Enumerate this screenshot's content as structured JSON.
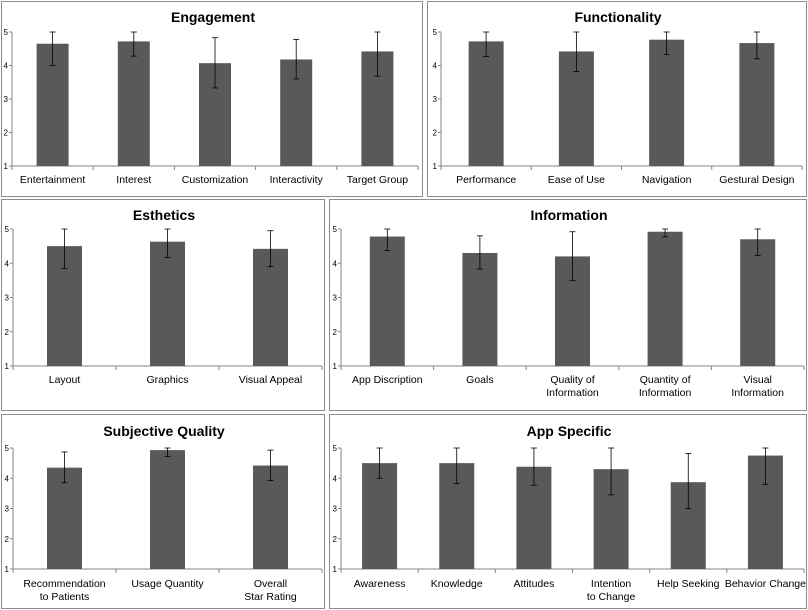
{
  "chart_data": [
    {
      "type": "bar",
      "title": "Engagement",
      "categories": [
        "Entertainment",
        "Interest",
        "Customization",
        "Interactivity",
        "Target Group"
      ],
      "values": [
        4.65,
        4.72,
        4.07,
        4.18,
        4.42
      ],
      "error_low": [
        4.0,
        4.28,
        3.33,
        3.6,
        3.68
      ],
      "error_high": [
        5.0,
        5.0,
        4.83,
        4.78,
        5.0
      ],
      "ylim": [
        1,
        5
      ],
      "yticks": [
        "1",
        "2",
        "3",
        "4",
        "5"
      ],
      "xlabel": "",
      "ylabel": "",
      "color": "#595959"
    },
    {
      "type": "bar",
      "title": "Functionality",
      "categories": [
        "Performance",
        "Ease of Use",
        "Navigation",
        "Gestural Design"
      ],
      "values": [
        4.72,
        4.42,
        4.77,
        4.67
      ],
      "error_low": [
        4.27,
        3.82,
        4.33,
        4.2
      ],
      "error_high": [
        5.0,
        5.0,
        5.0,
        5.0
      ],
      "ylim": [
        1,
        5
      ],
      "yticks": [
        "1",
        "2",
        "3",
        "4",
        "5"
      ],
      "xlabel": "",
      "ylabel": "",
      "color": "#595959"
    },
    {
      "type": "bar",
      "title": "Esthetics",
      "categories": [
        "Layout",
        "Graphics",
        "Visual Appeal"
      ],
      "values": [
        4.5,
        4.63,
        4.42
      ],
      "error_low": [
        3.85,
        4.17,
        3.9
      ],
      "error_high": [
        5.0,
        5.0,
        4.95
      ],
      "ylim": [
        1,
        5
      ],
      "yticks": [
        "1",
        "2",
        "3",
        "4",
        "5"
      ],
      "xlabel": "",
      "ylabel": "",
      "color": "#595959"
    },
    {
      "type": "bar",
      "title": "Information",
      "categories": [
        "App Discription",
        "Goals",
        "Quality of Information",
        "Quantity of Information",
        "Visual Information"
      ],
      "values": [
        4.78,
        4.3,
        4.2,
        4.92,
        4.7
      ],
      "error_low": [
        4.37,
        3.83,
        3.5,
        4.77,
        4.23
      ],
      "error_high": [
        5.0,
        4.8,
        4.92,
        5.0,
        5.0
      ],
      "ylim": [
        1,
        5
      ],
      "yticks": [
        "1",
        "2",
        "3",
        "4",
        "5"
      ],
      "xlabel": "",
      "ylabel": "",
      "color": "#595959"
    },
    {
      "type": "bar",
      "title": "Subjective Quality",
      "categories": [
        "Recommendation to Patients",
        "Usage Quantity",
        "Overall Star Rating"
      ],
      "values": [
        4.35,
        4.93,
        4.42
      ],
      "error_low": [
        3.85,
        4.72,
        3.92
      ],
      "error_high": [
        4.87,
        5.0,
        4.93
      ],
      "ylim": [
        1,
        5
      ],
      "yticks": [
        "1",
        "2",
        "3",
        "4",
        "5"
      ],
      "xlabel": "",
      "ylabel": "",
      "color": "#595959"
    },
    {
      "type": "bar",
      "title": "App Specific",
      "categories": [
        "Awareness",
        "Knowledge",
        "Attitudes",
        "Intention to Change",
        "Help Seeking",
        "Behavior Change"
      ],
      "values": [
        4.5,
        4.5,
        4.38,
        4.3,
        3.87,
        4.75
      ],
      "error_low": [
        4.0,
        3.83,
        3.77,
        3.45,
        3.0,
        3.8
      ],
      "error_high": [
        5.0,
        5.0,
        5.0,
        5.0,
        4.82,
        5.0
      ],
      "ylim": [
        1,
        5
      ],
      "yticks": [
        "1",
        "2",
        "3",
        "4",
        "5"
      ],
      "xlabel": "",
      "ylabel": "",
      "color": "#595959"
    }
  ]
}
